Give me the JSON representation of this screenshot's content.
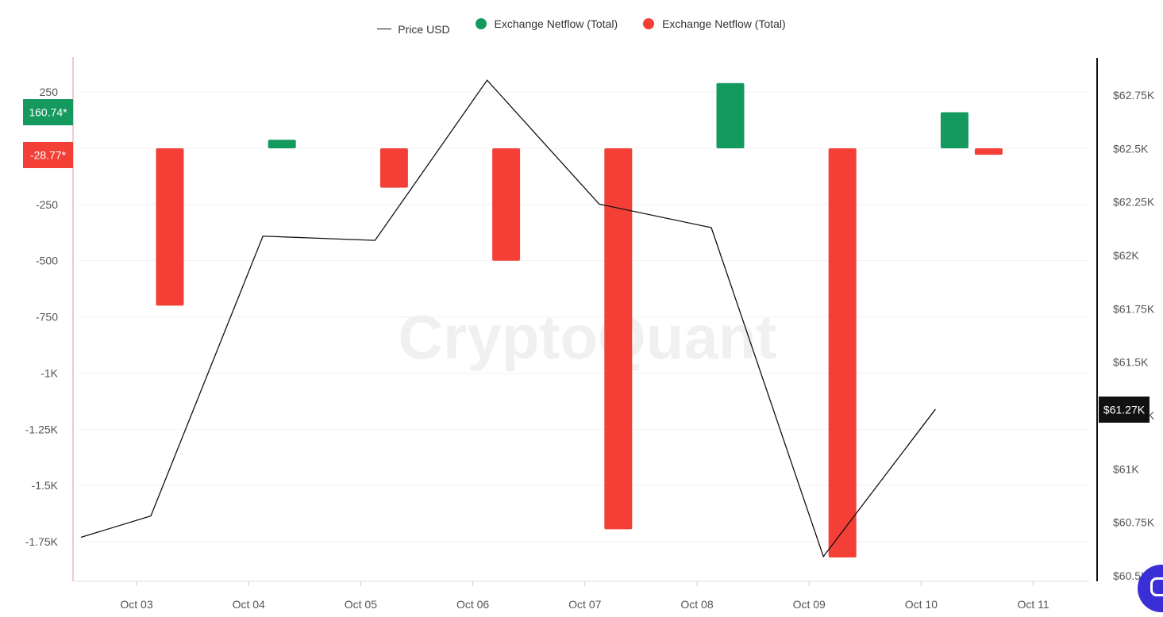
{
  "legend": {
    "price_label": "Price USD",
    "inflow_label": "Exchange Netflow (Total)",
    "outflow_label": "Exchange Netflow (Total)"
  },
  "watermark": "CryptoQuant",
  "badges": {
    "netflow_positive": "160.74*",
    "netflow_negative": "-28.77*",
    "price_current": "$61.27K"
  },
  "colors": {
    "positive": "#14995f",
    "negative": "#f43f36",
    "price_line": "#111111",
    "grid": "#f1f1f1",
    "axis_text": "#555555"
  },
  "chart_data": {
    "type": "bar+line",
    "x_labels": [
      "Oct 03",
      "Oct 04",
      "Oct 05",
      "Oct 06",
      "Oct 07",
      "Oct 08",
      "Oct 09",
      "Oct 10",
      "Oct 11"
    ],
    "left_axis": {
      "ticks": [
        250,
        0,
        -250,
        -500,
        -750,
        -1000,
        -1250,
        -1500,
        -1750
      ],
      "tick_labels": [
        "250",
        "",
        "-250",
        "-500",
        "-750",
        "-1K",
        "-1.25K",
        "-1.5K",
        "-1.75K"
      ],
      "range": [
        -1910,
        400
      ]
    },
    "right_axis": {
      "ticks": [
        62750,
        62500,
        62250,
        62000,
        61750,
        61500,
        61250,
        61000,
        60750,
        60500
      ],
      "tick_labels": [
        "$62.75K",
        "$62.5K",
        "$62.25K",
        "$62K",
        "$61.75K",
        "$61.5K",
        "$61.25K",
        "$61K",
        "$60.75K",
        "$60.5K"
      ],
      "range": [
        60500,
        62980
      ]
    },
    "netflow_bars": [
      {
        "date": "Oct 03",
        "value": -700
      },
      {
        "date": "Oct 04",
        "value": 38
      },
      {
        "date": "Oct 05",
        "value": -175
      },
      {
        "date": "Oct 06",
        "value": -500
      },
      {
        "date": "Oct 07",
        "value": -1695
      },
      {
        "date": "Oct 08",
        "value": 290
      },
      {
        "date": "Oct 09",
        "value": -1820
      },
      {
        "date": "Oct 10",
        "value": 160.74
      },
      {
        "date": "Oct 10",
        "value": -28.77
      }
    ],
    "price_series": {
      "name": "Price USD",
      "points": [
        {
          "date": "Oct 02",
          "value": 60680
        },
        {
          "date": "Oct 03",
          "value": 60780
        },
        {
          "date": "Oct 04",
          "value": 62090
        },
        {
          "date": "Oct 05",
          "value": 62070
        },
        {
          "date": "Oct 06",
          "value": 62820
        },
        {
          "date": "Oct 07",
          "value": 62240
        },
        {
          "date": "Oct 08",
          "value": 62130
        },
        {
          "date": "Oct 09",
          "value": 60590
        },
        {
          "date": "Oct 10",
          "value": 61280
        }
      ]
    },
    "grid": true,
    "legend_position": "top-center"
  }
}
